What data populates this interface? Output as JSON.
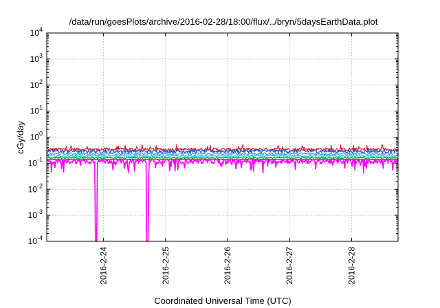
{
  "chart_data": {
    "type": "line",
    "title": "/data/run/goesPlots/archive/2016-02-28/18:00/flux/../bryn/5daysEarthData.plot",
    "xlabel": "Coordinated Universal Time (UTC)",
    "ylabel": "cGy/day",
    "yscale": "log",
    "ylim": [
      0.0001,
      10000
    ],
    "xlim": [
      "2016-02-23 02:00",
      "2016-02-28 18:00"
    ],
    "grid": true,
    "legend": "none",
    "x_ticks": [
      "2016-2-24",
      "2016-2-25",
      "2016-2-26",
      "2016-2-27",
      "2016-2-28"
    ],
    "y_ticks": [
      {
        "base": "10",
        "exp": "-4",
        "value": 0.0001
      },
      {
        "base": "10",
        "exp": "-3",
        "value": 0.001
      },
      {
        "base": "10",
        "exp": "-2",
        "value": 0.01
      },
      {
        "base": "10",
        "exp": "-1",
        "value": 0.1
      },
      {
        "base": "10",
        "exp": "0",
        "value": 1
      },
      {
        "base": "10",
        "exp": "1",
        "value": 10
      },
      {
        "base": "10",
        "exp": "2",
        "value": 100
      },
      {
        "base": "10",
        "exp": "3",
        "value": 1000
      },
      {
        "base": "10",
        "exp": "4",
        "value": 10000
      }
    ],
    "series": [
      {
        "color": "#e41a1c",
        "baseline": 0.34,
        "noise": 0.14
      },
      {
        "color": "#1f4fe0",
        "baseline": 0.29,
        "noise": 0.15
      },
      {
        "color": "#3aa0f0",
        "baseline": 0.23,
        "noise": 0.1
      },
      {
        "color": "#00dddd",
        "baseline": 0.19,
        "noise": 0.08
      },
      {
        "color": "#1b7f1b",
        "baseline": 0.16,
        "noise": 0.05
      },
      {
        "color": "#7a1a1a",
        "baseline": 0.14,
        "noise": 0.03
      },
      {
        "color": "#ff00ff",
        "baseline": 0.12,
        "noise": 0.2,
        "dropouts": [
          {
            "x": "2016-02-23 21:00",
            "y": 0.0001
          },
          {
            "x": "2016-02-24 17:00",
            "y": 0.0001
          }
        ]
      }
    ]
  }
}
